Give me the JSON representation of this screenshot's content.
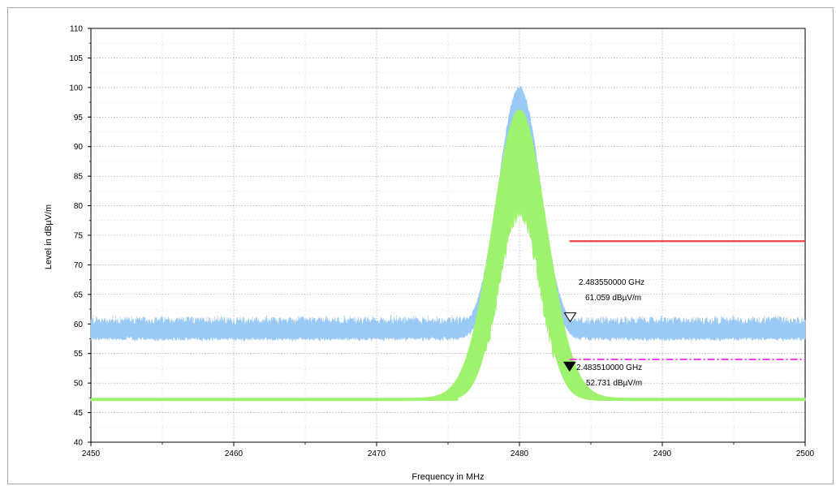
{
  "chart_data": {
    "type": "line",
    "title": "",
    "xlabel": "Frequency in MHz",
    "ylabel": "Level in dBµV/m",
    "xlim": [
      2450,
      2500
    ],
    "ylim": [
      40,
      110
    ],
    "x_ticks": [
      2450,
      2460,
      2470,
      2480,
      2490,
      2500
    ],
    "y_ticks": [
      40,
      45,
      50,
      55,
      60,
      65,
      70,
      75,
      80,
      85,
      90,
      95,
      100,
      105,
      110
    ],
    "grid": true,
    "series": [
      {
        "key": "peak",
        "color": "#99c9f5",
        "noise_floor_band": [
          57.5,
          60.5
        ],
        "envelope_peak_x": 2480,
        "envelope_peak_y": 100,
        "envelope_low_peak_y": 95,
        "envelope_base_x": [
          2476.7,
          2484.3
        ],
        "spur": {
          "x": 2471,
          "y": 61.5
        }
      },
      {
        "key": "average",
        "color": "#9ff26d",
        "noise_floor": 47.2,
        "envelope_peak_x": 2480,
        "envelope_peak_y": 96,
        "envelope_low_peak_y": 80,
        "envelope_base_x": [
          2475.7,
          2485.5
        ]
      },
      {
        "key": "peak-limit",
        "color": "#e8464a",
        "style": "solid",
        "x": [
          2483.5,
          2500
        ],
        "y": [
          74,
          74
        ]
      },
      {
        "key": "average-limit",
        "color": "#ee3fe9",
        "style": "dash-dot",
        "x": [
          2483.5,
          2500
        ],
        "y": [
          54,
          54
        ]
      }
    ],
    "markers": [
      {
        "key": "marker-1",
        "x": 2483.55,
        "y": 61.059,
        "symbol": "open-triangle",
        "freq_label": "2.483550000 GHz",
        "level_label": "61.059 dBµV/m"
      },
      {
        "key": "marker-2",
        "x": 2483.51,
        "y": 52.731,
        "symbol": "filled-triangle",
        "freq_label": "2.483510000 GHz",
        "level_label": "52.731 dBµV/m"
      }
    ]
  }
}
